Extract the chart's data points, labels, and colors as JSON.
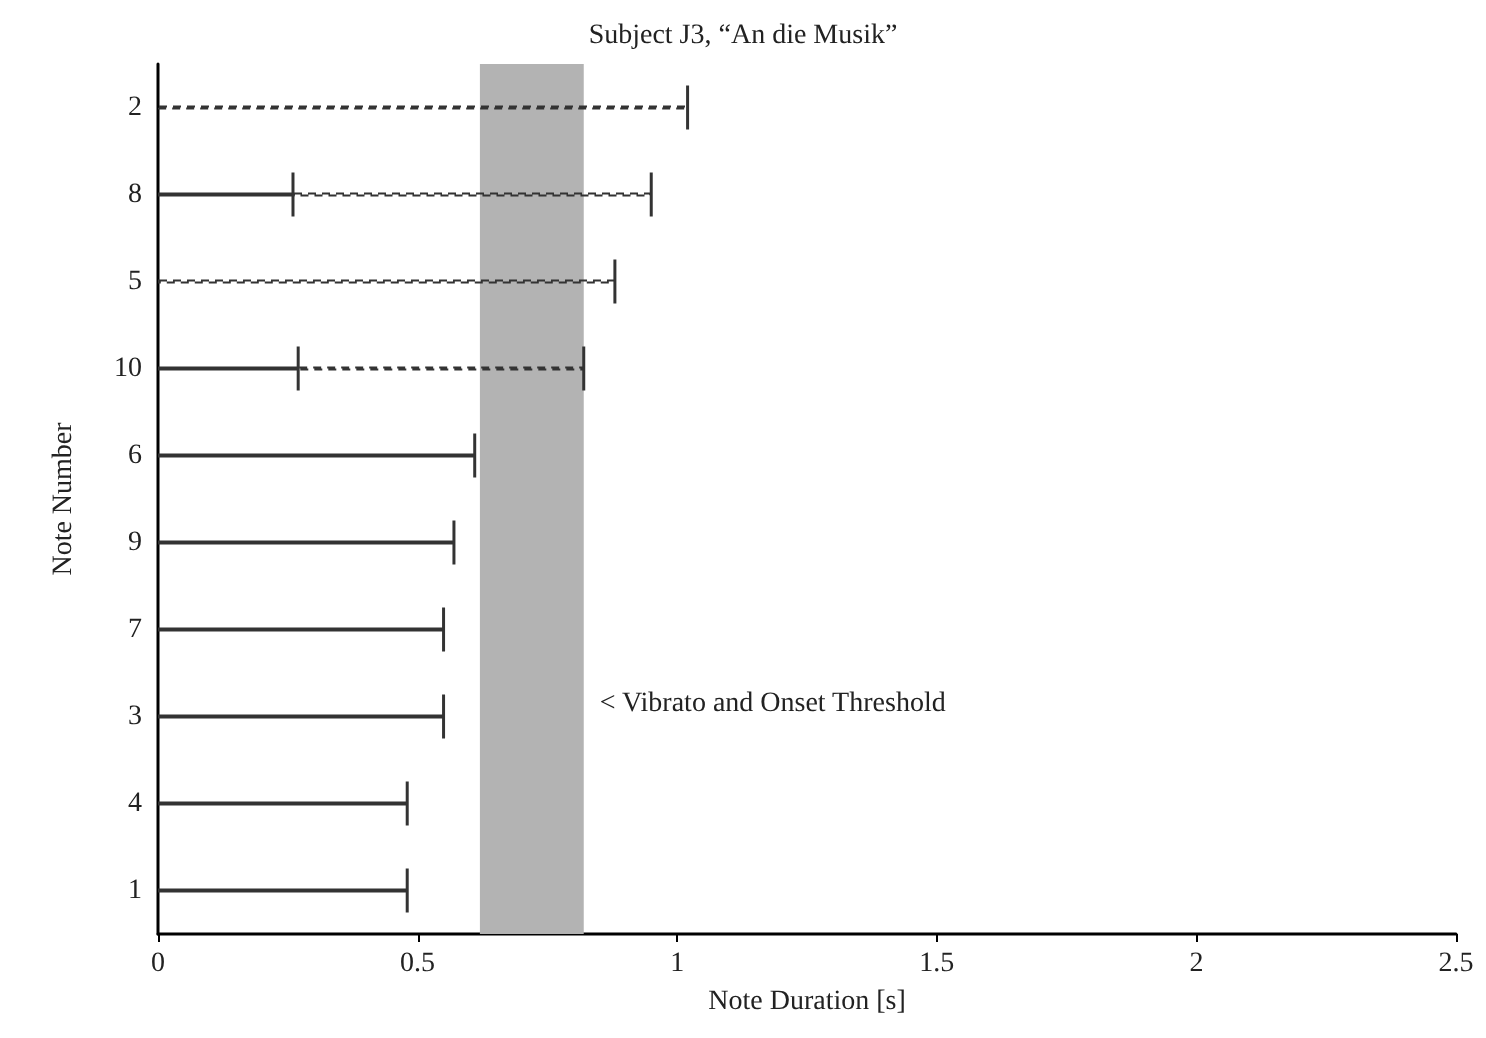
{
  "chart_data": {
    "type": "bar",
    "orientation": "horizontal",
    "stacked": true,
    "title": "Subject J3, “An die Musik”",
    "xlabel": "Note Duration [s]",
    "ylabel": "Note Number",
    "categories": [
      "2",
      "8",
      "5",
      "10",
      "6",
      "9",
      "7",
      "3",
      "4",
      "1"
    ],
    "series": [
      {
        "color": "#333333",
        "line_style": "solid",
        "values": [
          null,
          0.26,
          null,
          0.27,
          0.61,
          0.57,
          0.55,
          0.55,
          0.48,
          0.48
        ]
      },
      {
        "color": "#333333",
        "line_style": "dashed",
        "values": [
          1.02,
          0.69,
          0.88,
          0.55,
          null,
          null,
          null,
          null,
          null,
          null
        ]
      }
    ],
    "xlim": [
      0,
      2.5
    ],
    "xticks": [
      0,
      0.5,
      1,
      1.5,
      2,
      2.5
    ],
    "bands": [
      {
        "axis": "x",
        "from": 0.62,
        "to": 0.82,
        "label": "< Vibrato and Onset Threshold",
        "color": "#b3b3b3"
      }
    ],
    "grid": false
  }
}
